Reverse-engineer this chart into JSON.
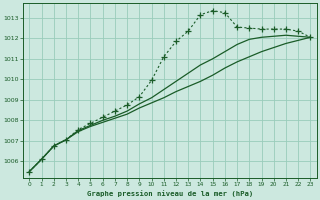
{
  "title": "Graphe pression niveau de la mer (hPa)",
  "background_color": "#cce8df",
  "grid_color": "#99ccbb",
  "line_color": "#1a5c28",
  "ylim": [
    1005.2,
    1013.7
  ],
  "xlim": [
    -0.5,
    23.5
  ],
  "yticks": [
    1006,
    1007,
    1008,
    1009,
    1010,
    1011,
    1012,
    1013
  ],
  "xticks": [
    0,
    1,
    2,
    3,
    4,
    5,
    6,
    7,
    8,
    9,
    10,
    11,
    12,
    13,
    14,
    15,
    16,
    17,
    18,
    19,
    20,
    21,
    22,
    23
  ],
  "series1_x": [
    0,
    1,
    2,
    3,
    4,
    5,
    6,
    7,
    8,
    9,
    10,
    11,
    12,
    13,
    14,
    15,
    16,
    17,
    18,
    19,
    20,
    21,
    22,
    23
  ],
  "series1_y": [
    1005.5,
    1006.1,
    1006.75,
    1007.05,
    1007.55,
    1007.85,
    1008.15,
    1008.45,
    1008.75,
    1009.15,
    1009.95,
    1011.1,
    1011.85,
    1012.35,
    1013.15,
    1013.35,
    1013.25,
    1012.55,
    1012.5,
    1012.45,
    1012.45,
    1012.45,
    1012.35,
    1012.05
  ],
  "series2_x": [
    0,
    1,
    2,
    3,
    4,
    5,
    6,
    7,
    8,
    9,
    10,
    11,
    12,
    13,
    14,
    15,
    16,
    17,
    18,
    19,
    20,
    21,
    22,
    23
  ],
  "series2_y": [
    1005.5,
    1006.1,
    1006.75,
    1007.05,
    1007.5,
    1007.75,
    1008.0,
    1008.2,
    1008.45,
    1008.8,
    1009.1,
    1009.5,
    1009.9,
    1010.3,
    1010.7,
    1011.0,
    1011.35,
    1011.7,
    1011.95,
    1012.05,
    1012.1,
    1012.15,
    1012.1,
    1012.05
  ],
  "series3_x": [
    0,
    1,
    2,
    3,
    4,
    5,
    6,
    7,
    8,
    9,
    10,
    11,
    12,
    13,
    14,
    15,
    16,
    17,
    18,
    19,
    20,
    21,
    22,
    23
  ],
  "series3_y": [
    1005.5,
    1006.1,
    1006.75,
    1007.05,
    1007.45,
    1007.7,
    1007.9,
    1008.1,
    1008.3,
    1008.6,
    1008.85,
    1009.1,
    1009.4,
    1009.65,
    1009.9,
    1010.2,
    1010.55,
    1010.85,
    1011.1,
    1011.35,
    1011.55,
    1011.75,
    1011.9,
    1012.05
  ]
}
